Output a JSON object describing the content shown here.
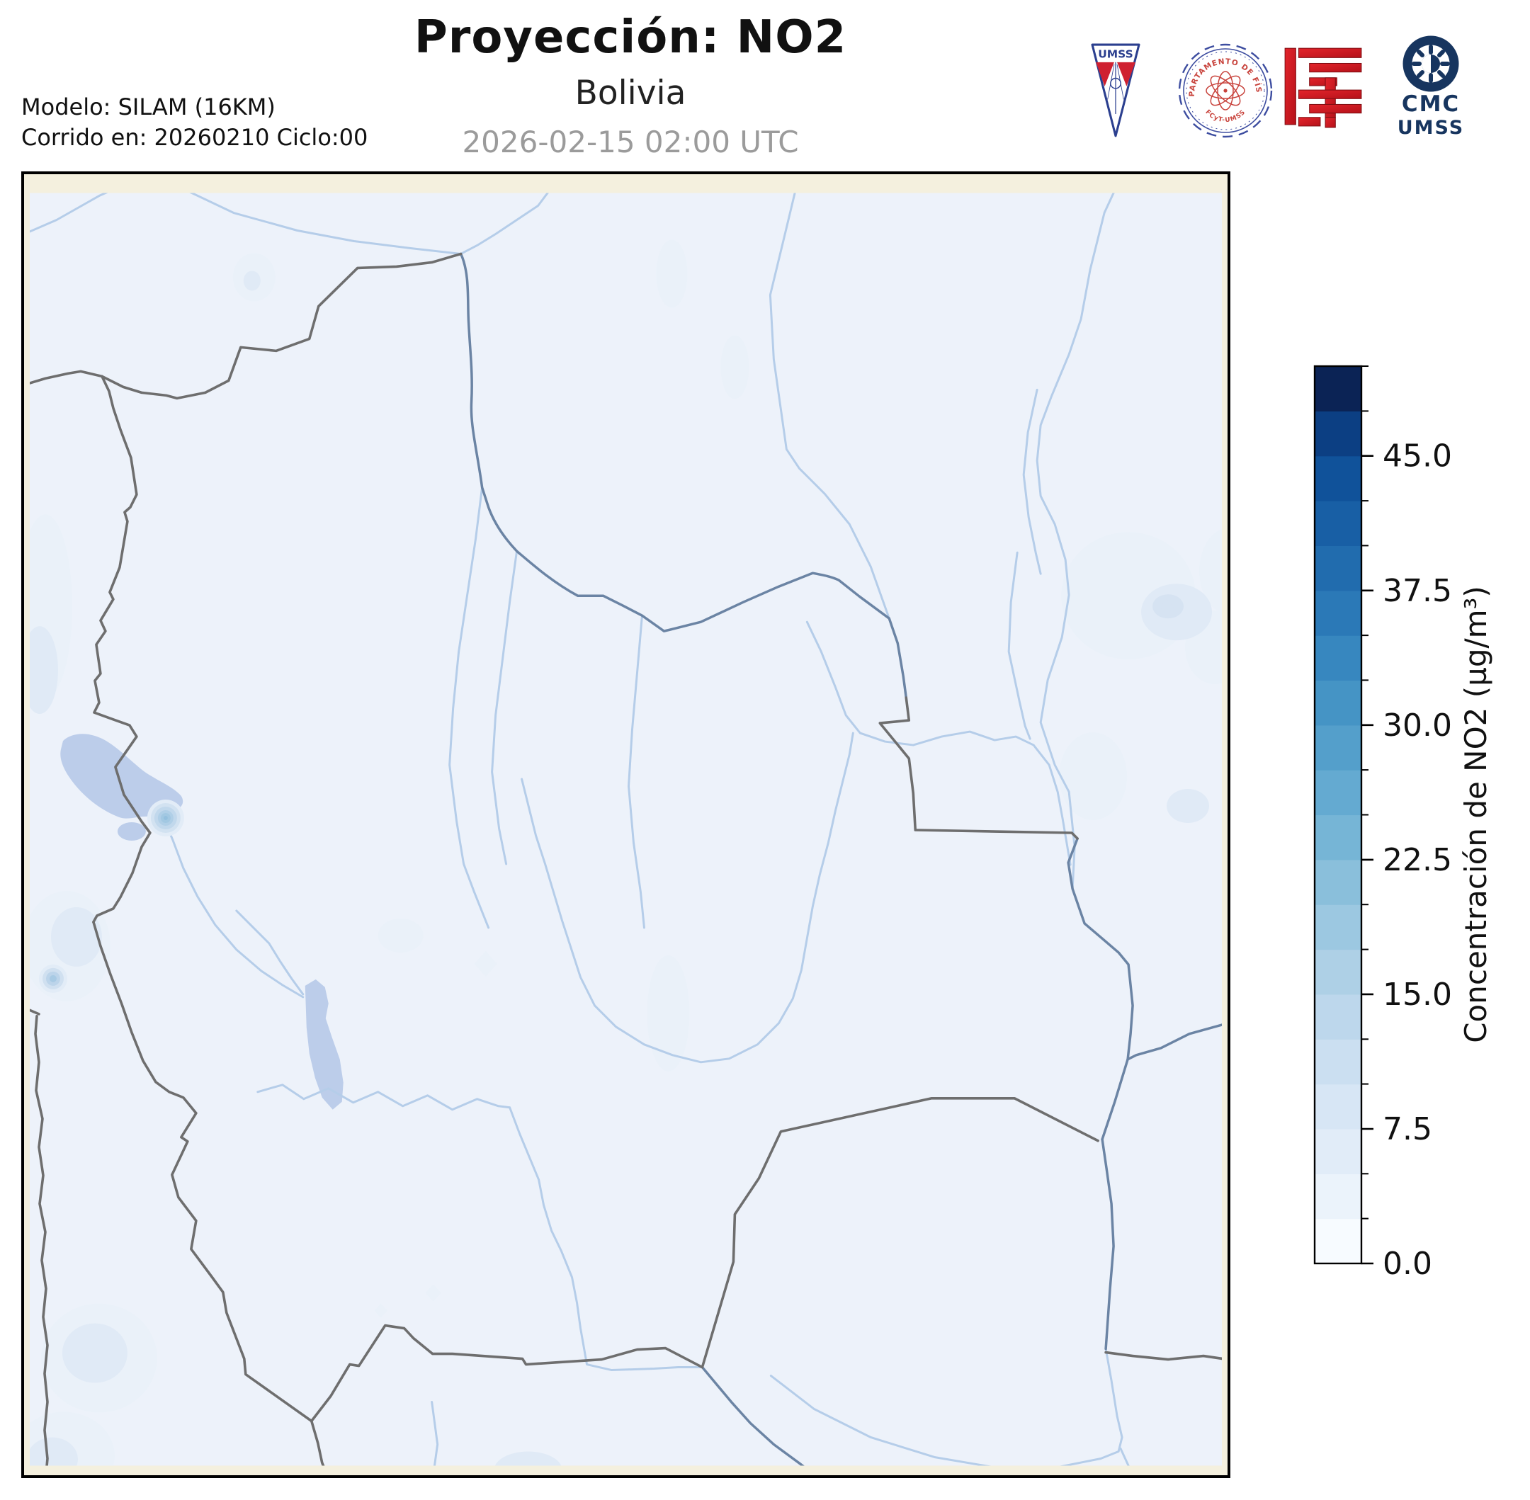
{
  "header": {
    "title": "Proyección: NO2",
    "subtitle": "Bolivia",
    "datetime": "2026-02-15 02:00 UTC",
    "model_line1": "Modelo: SILAM (16KM)",
    "model_line2": "Corrido en: 20260210 Ciclo:00"
  },
  "logos": {
    "umss_shield_label": "UMSS",
    "physics_seal_top": "DEPARTAMENTO DE FÍSICA",
    "physics_seal_bottom": "FCyT-UMSS",
    "cmc_line1": "CMC",
    "cmc_line2": "UMSS"
  },
  "map": {
    "region": "Bolivia",
    "background_color": "#edf2fa",
    "domain_edge_color": "#f4f0de",
    "country_border_color": "#6e6e6e",
    "river_border_color": "#6b84a4",
    "river_color": "#b5cde9",
    "lake_color": "#bccdea",
    "frame_color": "#000000"
  },
  "colorbar": {
    "label": "Concentración de NO2 (µg/m³)",
    "min": 0,
    "max": 50,
    "minor_step": 2.5,
    "tick_values": [
      0,
      7.5,
      15,
      22.5,
      30,
      37.5,
      45
    ],
    "tick_labels": [
      "0.0",
      "7.5",
      "15.0",
      "22.5",
      "30.0",
      "37.5",
      "45.0"
    ],
    "colors": [
      "#f7fbff",
      "#ebf3fb",
      "#e1ecf8",
      "#d7e6f5",
      "#cbdff1",
      "#bdd7ec",
      "#aed0e6",
      "#9cc8e1",
      "#8abfdb",
      "#76b5d6",
      "#64aad1",
      "#549fcb",
      "#4594c5",
      "#3787bf",
      "#2b79b7",
      "#216cae",
      "#185fa5",
      "#10529a",
      "#0c3f83",
      "#0b2355"
    ]
  },
  "chart_data": {
    "type": "heatmap",
    "title": "Proyección: NO2",
    "region": "Bolivia",
    "timestamp": "2026-02-15 02:00 UTC",
    "model": "SILAM (16KM)",
    "run_date": "20260210",
    "run_cycle": "00",
    "colorbar_label": "Concentración de NO2 (µg/m³)",
    "value_range": [
      0,
      50
    ],
    "tick_labels": [
      "0.0",
      "7.5",
      "15.0",
      "22.5",
      "30.0",
      "37.5",
      "45.0"
    ],
    "legend_position": "right",
    "field_note": "concentration field mostly in lowest bins (0-5 µg/m³) with small hotspots near La Paz and the southwest altiplano"
  }
}
